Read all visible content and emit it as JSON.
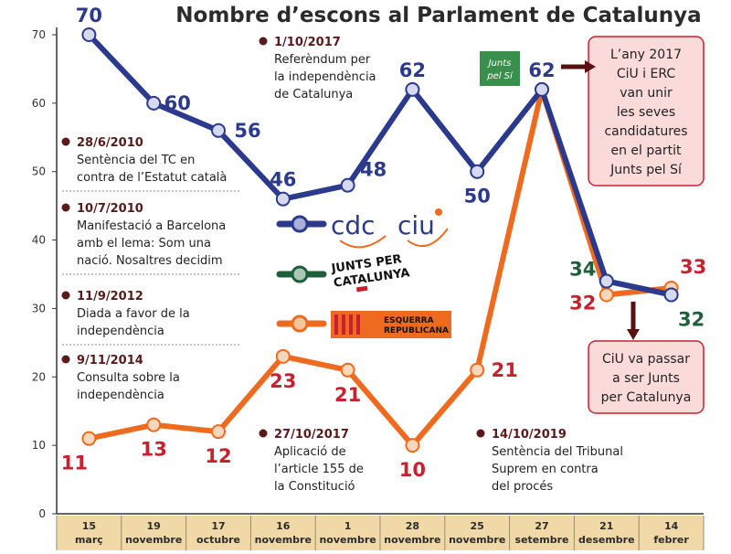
{
  "chart_data": {
    "type": "line",
    "title": "Nombre d’escons al Parlament de Catalunya",
    "categories": [
      [
        "15",
        "març"
      ],
      [
        "19",
        "novembre"
      ],
      [
        "17",
        "octubre"
      ],
      [
        "16",
        "novembre"
      ],
      [
        "1",
        "novembre"
      ],
      [
        "28",
        "novembre"
      ],
      [
        "25",
        "novembre"
      ],
      [
        "27",
        "setembre"
      ],
      [
        "21",
        "desembre"
      ],
      [
        "14",
        "febrer"
      ]
    ],
    "ylim": [
      0,
      70
    ],
    "yticks": [
      0,
      10,
      20,
      30,
      40,
      50,
      60,
      70
    ],
    "grid": false,
    "series": [
      {
        "key": "ciu",
        "color": "#2b3a8c",
        "values": [
          70,
          60,
          56,
          46,
          48,
          62,
          50,
          62,
          34,
          32
        ],
        "labels": [
          "70",
          "60",
          "56",
          "46",
          "48",
          "62",
          "50",
          "62",
          null,
          "32"
        ]
      },
      {
        "key": "junts",
        "color": "#1f5e3c",
        "values": [
          null,
          null,
          null,
          null,
          null,
          null,
          null,
          null,
          34,
          32
        ],
        "labels": [
          null,
          null,
          null,
          null,
          null,
          null,
          null,
          null,
          "34",
          null
        ]
      },
      {
        "key": "erc",
        "color": "#ee6a1f",
        "values": [
          11,
          13,
          12,
          23,
          21,
          10,
          21,
          62,
          32,
          33
        ],
        "labels": [
          "11",
          "13",
          "12",
          "23",
          "21",
          "10",
          "21",
          null,
          "32",
          "33"
        ]
      }
    ]
  },
  "annotations": [
    {
      "date": "28/6/2010",
      "lines": [
        "Sentència del TC en",
        "contra de l’Estatut català"
      ]
    },
    {
      "date": "10/7/2010",
      "lines": [
        "Manifestació a Barcelona",
        "amb el lema: Som una",
        "nació. Nosaltres decidim"
      ]
    },
    {
      "date": "11/9/2012",
      "lines": [
        "Diada a favor de la",
        "independència"
      ]
    },
    {
      "date": "9/11/2014",
      "lines": [
        "Consulta sobre la",
        "independència"
      ]
    },
    {
      "date": "1/10/2017",
      "lines": [
        "Referèndum per",
        "la independència",
        "de Catalunya"
      ]
    },
    {
      "date": "27/10/2017",
      "lines": [
        "Aplicació de",
        "l’article 155 de",
        "la Constitució"
      ]
    },
    {
      "date": "14/10/2019",
      "lines": [
        "Sentència del Tribunal",
        "Suprem en contra",
        "del procés"
      ]
    }
  ],
  "boxes": [
    {
      "lines": [
        "L’any 2017",
        "CiU i ERC",
        "van unir",
        "les seves",
        "candidatures",
        "en el partit",
        "Junts pel Sí"
      ]
    },
    {
      "lines": [
        "CiU va passar",
        "a ser Junts",
        "per Catalunya"
      ]
    }
  ],
  "legend": {
    "cdc": "cdc",
    "ciu": "ciu",
    "junts_lines": [
      "JUNTS PER",
      "CATALUNYA"
    ],
    "esquerra_lines": [
      "ESQUERRA",
      "REPUBLICANA"
    ],
    "jxsi_lines": [
      "Junts",
      "pel Sí"
    ]
  },
  "colors": {
    "ciu": "#2b3a8c",
    "erc": "#ee6a1f",
    "junts": "#1f5e3c",
    "red_label": "#c8202e",
    "box_fill": "#fbdada",
    "box_stroke": "#c8202e",
    "axis_band": "#f1d9a7"
  }
}
